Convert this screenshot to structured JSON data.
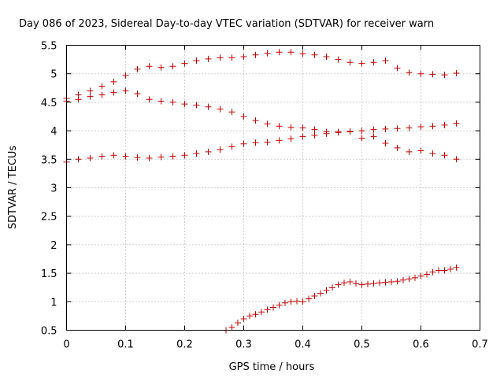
{
  "chart_data": {
    "type": "scatter",
    "title": "Day 086 of 2023, Sidereal Day-to-day VTEC variation (SDTVAR) for receiver warn",
    "xlabel": "GPS time / hours",
    "ylabel": "SDTVAR / TECUs",
    "xlim": [
      0,
      0.7
    ],
    "ylim": [
      0.5,
      5.5
    ],
    "xticks": [
      "0",
      "0.1",
      "0.2",
      "0.3",
      "0.4",
      "0.5",
      "0.6",
      "0.7"
    ],
    "yticks": [
      "0.5",
      "1",
      "1.5",
      "2",
      "2.5",
      "3",
      "3.5",
      "4",
      "4.5",
      "5",
      "5.5"
    ],
    "grid": true,
    "marker": "+",
    "color": "#cc0000",
    "series": [
      {
        "name": "series-1",
        "x": [
          0.0,
          0.02,
          0.04,
          0.06,
          0.08,
          0.1,
          0.12,
          0.14,
          0.16,
          0.18,
          0.2,
          0.22,
          0.24,
          0.26,
          0.28,
          0.3,
          0.32,
          0.34,
          0.36,
          0.38,
          0.4,
          0.42,
          0.44,
          0.46,
          0.48,
          0.5,
          0.52,
          0.54,
          0.56,
          0.58,
          0.6,
          0.62,
          0.64,
          0.66
        ],
        "y": [
          4.57,
          4.63,
          4.7,
          4.78,
          4.86,
          4.97,
          5.08,
          5.13,
          5.11,
          5.13,
          5.18,
          5.23,
          5.26,
          5.28,
          5.28,
          5.3,
          5.33,
          5.36,
          5.38,
          5.38,
          5.35,
          5.33,
          5.3,
          5.25,
          5.2,
          5.18,
          5.2,
          5.23,
          5.1,
          5.02,
          5.0,
          4.99,
          4.98,
          5.01
        ]
      },
      {
        "name": "series-2",
        "x": [
          0.0,
          0.02,
          0.04,
          0.06,
          0.08,
          0.1,
          0.12,
          0.14,
          0.16,
          0.18,
          0.2,
          0.22,
          0.24,
          0.26,
          0.28,
          0.3,
          0.32,
          0.34,
          0.36,
          0.38,
          0.4,
          0.42,
          0.44,
          0.46,
          0.48,
          0.5,
          0.52,
          0.54,
          0.56,
          0.58,
          0.6,
          0.62,
          0.64,
          0.66
        ],
        "y": [
          4.52,
          4.55,
          4.6,
          4.63,
          4.67,
          4.7,
          4.65,
          4.55,
          4.52,
          4.5,
          4.47,
          4.45,
          4.42,
          4.38,
          4.33,
          4.25,
          4.18,
          4.12,
          4.08,
          4.06,
          4.05,
          4.02,
          3.98,
          3.98,
          3.98,
          3.87,
          3.9,
          3.78,
          3.7,
          3.63,
          3.65,
          3.6,
          3.57,
          3.5
        ]
      },
      {
        "name": "series-3",
        "x": [
          0.0,
          0.02,
          0.04,
          0.06,
          0.08,
          0.1,
          0.12,
          0.14,
          0.16,
          0.18,
          0.2,
          0.22,
          0.24,
          0.26,
          0.28,
          0.3,
          0.32,
          0.34,
          0.36,
          0.38,
          0.4,
          0.42,
          0.44,
          0.46,
          0.48,
          0.5,
          0.52,
          0.54,
          0.56,
          0.58,
          0.6,
          0.62,
          0.64,
          0.66
        ],
        "y": [
          3.45,
          3.5,
          3.52,
          3.55,
          3.57,
          3.55,
          3.53,
          3.52,
          3.54,
          3.55,
          3.57,
          3.6,
          3.63,
          3.67,
          3.72,
          3.77,
          3.79,
          3.8,
          3.83,
          3.86,
          3.9,
          3.92,
          3.95,
          3.97,
          3.99,
          4.0,
          4.02,
          4.03,
          4.04,
          4.05,
          4.07,
          4.08,
          4.1,
          4.13
        ]
      },
      {
        "name": "series-4",
        "x": [
          0.27,
          0.28,
          0.29,
          0.3,
          0.31,
          0.32,
          0.33,
          0.34,
          0.35,
          0.36,
          0.37,
          0.38,
          0.39,
          0.4,
          0.41,
          0.42,
          0.43,
          0.44,
          0.45,
          0.46,
          0.47,
          0.48,
          0.49,
          0.5,
          0.51,
          0.52,
          0.53,
          0.54,
          0.55,
          0.56,
          0.57,
          0.58,
          0.59,
          0.6,
          0.61,
          0.62,
          0.63,
          0.64,
          0.65,
          0.66
        ],
        "y": [
          0.5,
          0.55,
          0.63,
          0.7,
          0.75,
          0.78,
          0.82,
          0.86,
          0.9,
          0.94,
          0.98,
          1.0,
          1.01,
          1.0,
          1.05,
          1.1,
          1.15,
          1.2,
          1.25,
          1.3,
          1.33,
          1.35,
          1.32,
          1.3,
          1.31,
          1.32,
          1.33,
          1.34,
          1.35,
          1.36,
          1.38,
          1.4,
          1.42,
          1.45,
          1.48,
          1.52,
          1.55,
          1.55,
          1.57,
          1.6
        ]
      }
    ]
  }
}
